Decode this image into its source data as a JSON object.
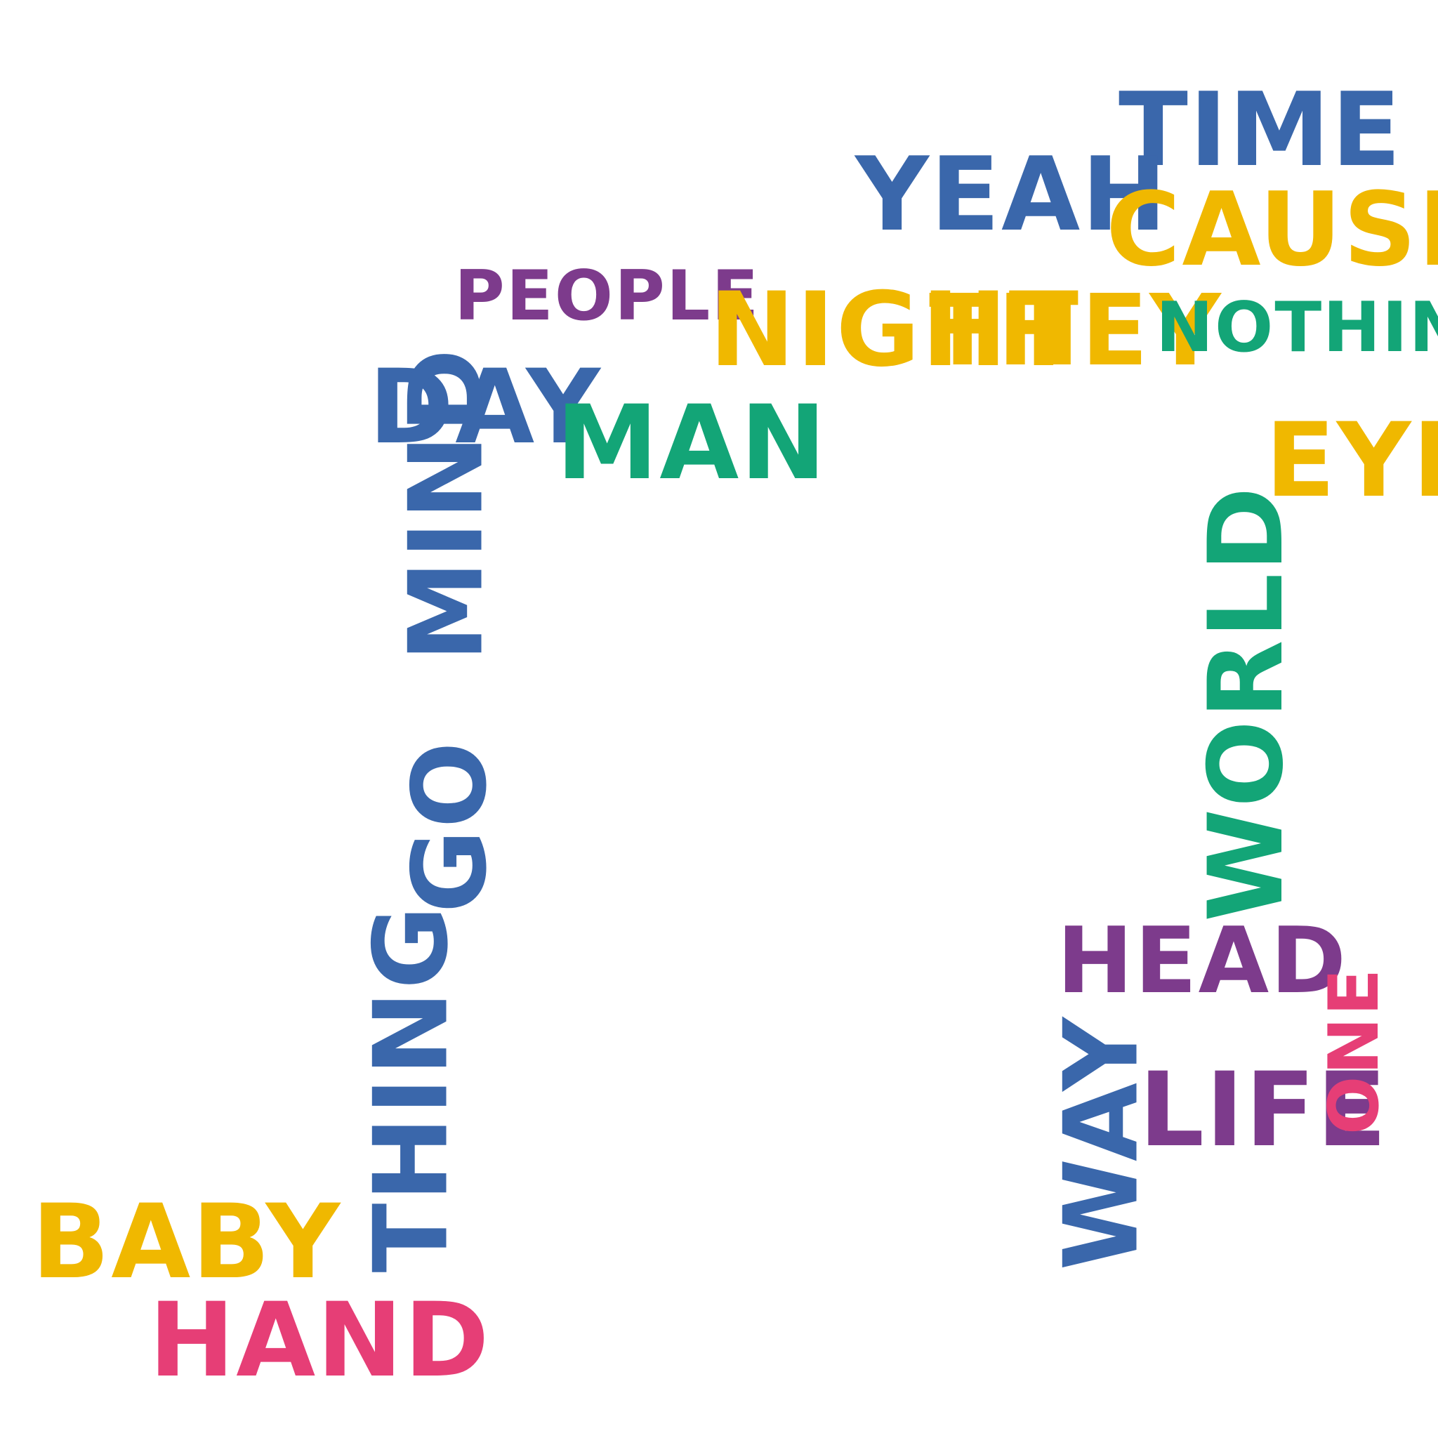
{
  "words": {
    "time": "TIME",
    "yeah": "YEAH",
    "cause": "CAUSE",
    "people": "PEOPLE",
    "night": "NIGHT",
    "they": "THEY",
    "nothing": "NOTHING",
    "day": "DAY",
    "man": "MAN",
    "eye": "EYE",
    "mind": "MIND",
    "go": "GO",
    "world": "WORLD",
    "thing": "THING",
    "head": "HEAD",
    "way": "WAY",
    "life": "LIFE",
    "one": "ONE",
    "baby": "BABY",
    "hand": "HAND"
  },
  "colors": {
    "blue": "#3a67ab",
    "yellow": "#f0b800",
    "purple": "#7d3b8c",
    "green": "#13a577",
    "pink": "#e63e76"
  }
}
